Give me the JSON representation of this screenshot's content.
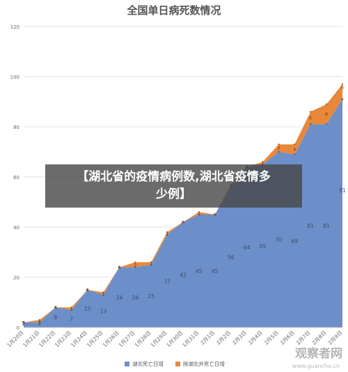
{
  "chart_data": {
    "type": "area",
    "stacked": true,
    "title": "全国单日病死数情况",
    "categories": [
      "1月20日",
      "1月21日",
      "1月22日",
      "1月23日",
      "1月24日",
      "1月25日",
      "1月26日",
      "1月27日",
      "1月28日",
      "1月29日",
      "1月30日",
      "1月31日",
      "2月1日",
      "2月2日",
      "2月3日",
      "2月4日",
      "2月5日",
      "2月6日",
      "2月7日",
      "2月8日",
      "2月9日"
    ],
    "yticks": [
      "0",
      "20",
      "40",
      "60",
      "80",
      "100",
      "120"
    ],
    "ylim": [
      0,
      120
    ],
    "grid": true,
    "legend_position": "bottom",
    "series": [
      {
        "name": "湖北死亡日增",
        "color": "#6d8fc9",
        "values": [
          2,
          2,
          8,
          7,
          15,
          13,
          24,
          24,
          25,
          37,
          42,
          45,
          45,
          56,
          64,
          65,
          70,
          69,
          81,
          81,
          91
        ]
      },
      {
        "name": "除湖北外死亡日增",
        "color": "#e8883a",
        "values": [
          0,
          1,
          0,
          1,
          0,
          1,
          0,
          2,
          1,
          1,
          0,
          1,
          0,
          1,
          0,
          1,
          3,
          4,
          5,
          8,
          6
        ]
      }
    ]
  },
  "overlay": {
    "line1": "【湖北省的疫情病例数,湖北省疫情多",
    "line2": "少例】"
  },
  "watermark": {
    "text": "观察者网",
    "sub": "www.guancha.cn"
  }
}
